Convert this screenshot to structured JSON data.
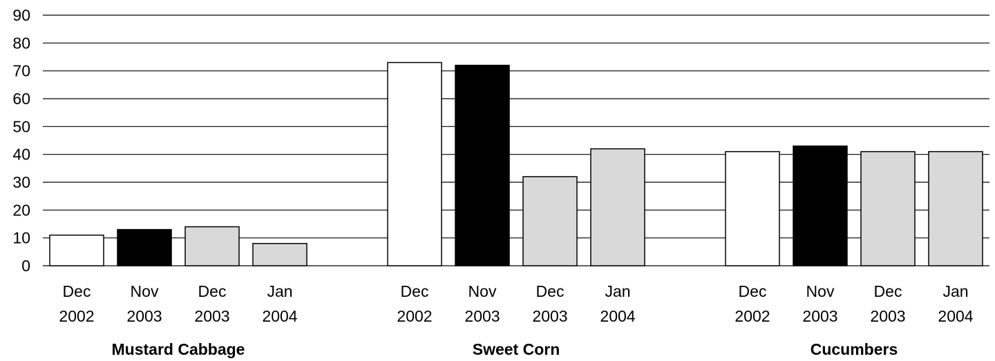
{
  "chart_data": {
    "type": "bar",
    "ylim": [
      0,
      90
    ],
    "yticks": [
      0,
      10,
      20,
      30,
      40,
      50,
      60,
      70,
      80,
      90
    ],
    "grid": true,
    "legend": "none",
    "groups": [
      {
        "name": "Mustard Cabbage",
        "bars": [
          {
            "label_top": "Dec",
            "label_bottom": "2002",
            "value": 11,
            "color": "#ffffff"
          },
          {
            "label_top": "Nov",
            "label_bottom": "2003",
            "value": 13,
            "color": "#000000"
          },
          {
            "label_top": "Dec",
            "label_bottom": "2003",
            "value": 14,
            "color": "#d9d9d9"
          },
          {
            "label_top": "Jan",
            "label_bottom": "2004",
            "value": 8,
            "color": "#d9d9d9"
          }
        ]
      },
      {
        "name": "Sweet Corn",
        "bars": [
          {
            "label_top": "Dec",
            "label_bottom": "2002",
            "value": 73,
            "color": "#ffffff"
          },
          {
            "label_top": "Nov",
            "label_bottom": "2003",
            "value": 72,
            "color": "#000000"
          },
          {
            "label_top": "Dec",
            "label_bottom": "2003",
            "value": 32,
            "color": "#d9d9d9"
          },
          {
            "label_top": "Jan",
            "label_bottom": "2004",
            "value": 42,
            "color": "#d9d9d9"
          }
        ]
      },
      {
        "name": "Cucumbers",
        "bars": [
          {
            "label_top": "Dec",
            "label_bottom": "2002",
            "value": 41,
            "color": "#ffffff"
          },
          {
            "label_top": "Nov",
            "label_bottom": "2003",
            "value": 43,
            "color": "#000000"
          },
          {
            "label_top": "Dec",
            "label_bottom": "2003",
            "value": 41,
            "color": "#d9d9d9"
          },
          {
            "label_top": "Jan",
            "label_bottom": "2004",
            "value": 41,
            "color": "#d9d9d9"
          }
        ]
      }
    ]
  }
}
